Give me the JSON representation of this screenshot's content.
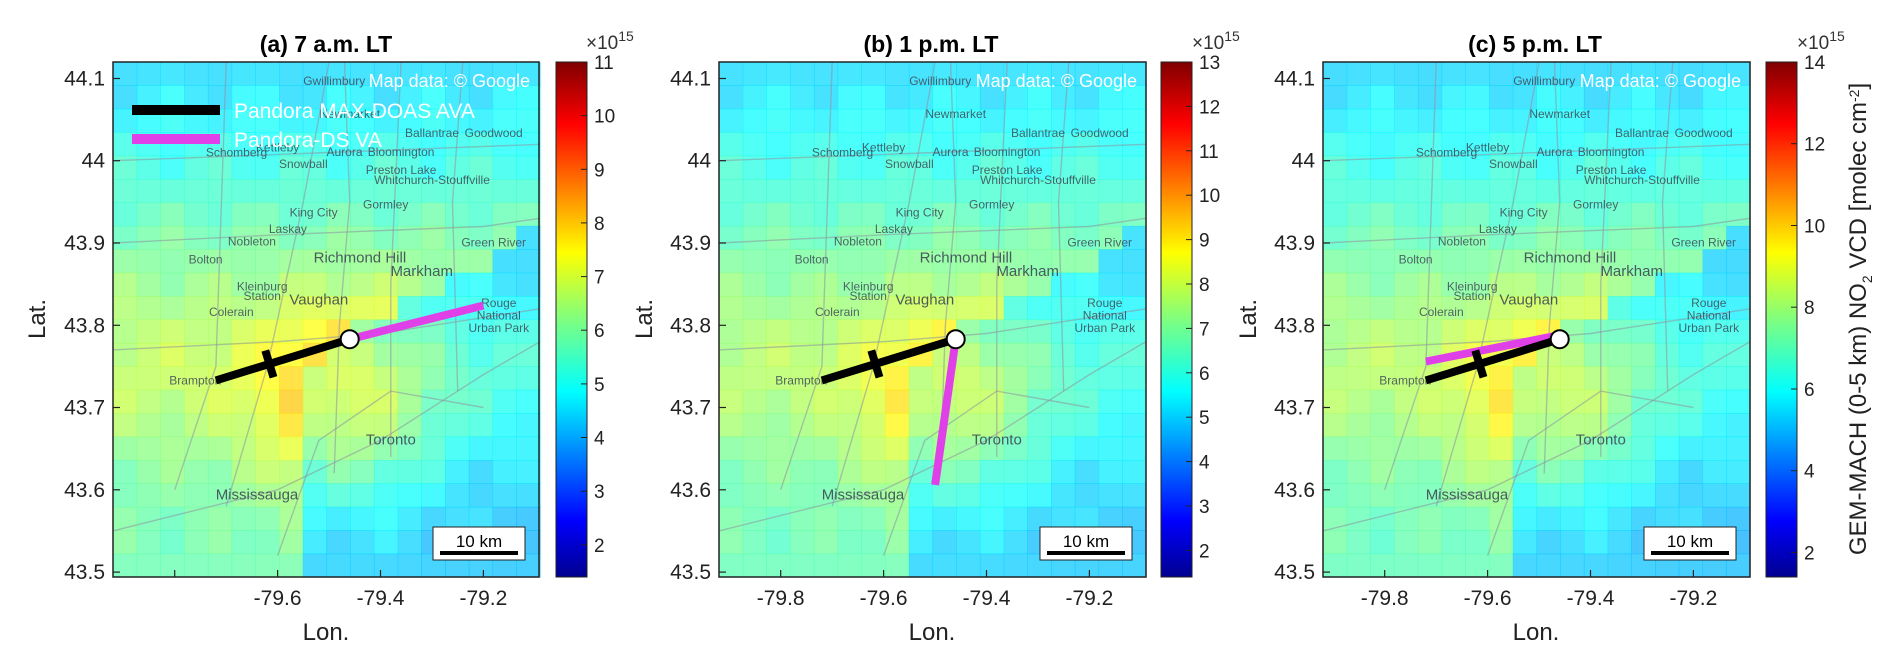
{
  "panels": [
    {
      "title": "(a) 7 a.m. LT",
      "lon_ticks": [
        "",
        "-79.6",
        "-79.4",
        "-79.2"
      ],
      "lat_ticks": [
        "44.1",
        "44",
        "43.9",
        "43.8",
        "43.7",
        "43.6",
        "43.5"
      ],
      "colorbar": {
        "exponent": "×10",
        "exponent_power": "15",
        "ticks": [
          "2",
          "3",
          "4",
          "5",
          "6",
          "7",
          "8",
          "9",
          "10",
          "11"
        ],
        "min": 1.4,
        "max": 11
      },
      "show_legend": true,
      "ds_line": {
        "lon": [
          -79.46,
          -79.2
        ],
        "lat": [
          43.783,
          43.824
        ]
      }
    },
    {
      "title": "(b) 1 p.m. LT",
      "lon_ticks": [
        "-79.8",
        "-79.6",
        "-79.4",
        "-79.2"
      ],
      "lat_ticks": [
        "44.1",
        "44",
        "43.9",
        "43.8",
        "43.7",
        "43.6",
        "43.5"
      ],
      "colorbar": {
        "exponent": "×10",
        "exponent_power": "15",
        "ticks": [
          "2",
          "3",
          "4",
          "5",
          "6",
          "7",
          "8",
          "9",
          "10",
          "11",
          "12",
          "13"
        ],
        "min": 1.4,
        "max": 13
      },
      "show_legend": false,
      "ds_line": {
        "lon": [
          -79.46,
          -79.5
        ],
        "lat": [
          43.783,
          43.606
        ]
      }
    },
    {
      "title": "(c) 5 p.m. LT",
      "lon_ticks": [
        "-79.8",
        "-79.6",
        "-79.4",
        "-79.2"
      ],
      "lat_ticks": [
        "44.1",
        "44",
        "43.9",
        "43.8",
        "43.7",
        "43.6",
        "43.5"
      ],
      "colorbar": {
        "exponent": "×10",
        "exponent_power": "15",
        "ticks": [
          "2",
          "4",
          "6",
          "8",
          "10",
          "12",
          "14"
        ],
        "min": 1.4,
        "max": 14
      },
      "show_legend": false,
      "ds_line": {
        "lon": [
          -79.46,
          -79.72
        ],
        "lat": [
          43.788,
          43.756
        ]
      }
    }
  ],
  "common": {
    "xlabel": "Lon.",
    "ylabel": "Lat.",
    "colorbar_label": "GEM-MACH (0-5 km) NO",
    "colorbar_label_sub": "2",
    "colorbar_label_mid": " VCD [molec cm",
    "colorbar_label_sup": "-2",
    "colorbar_label_end": "]",
    "attribution": "Map data: © Google",
    "scale_bar": "10 km",
    "ava_line": {
      "lon": [
        -79.46,
        -79.72
      ],
      "lat": [
        43.783,
        43.733
      ]
    }
  },
  "legend": {
    "items": [
      {
        "label": "Pandora MAX-DOAS AVA",
        "color": "#000000"
      },
      {
        "label": "Pandora-DS VA",
        "color": "#e040e8"
      }
    ]
  },
  "places": [
    {
      "name": "Gwillimbury",
      "lon": -79.49,
      "lat": 44.092,
      "big": false
    },
    {
      "name": "Newmarket",
      "lon": -79.46,
      "lat": 44.052,
      "big": false
    },
    {
      "name": "Ballantrae",
      "lon": -79.3,
      "lat": 44.029,
      "big": false
    },
    {
      "name": "Goodwood",
      "lon": -79.18,
      "lat": 44.029,
      "big": false
    },
    {
      "name": "Schomberg",
      "lon": -79.68,
      "lat": 44.005,
      "big": false
    },
    {
      "name": "Kettleby",
      "lon": -79.6,
      "lat": 44.011,
      "big": false
    },
    {
      "name": "Aurora",
      "lon": -79.47,
      "lat": 44.006,
      "big": false
    },
    {
      "name": "Bloomington",
      "lon": -79.36,
      "lat": 44.006,
      "big": false
    },
    {
      "name": "Snowball",
      "lon": -79.55,
      "lat": 43.991,
      "big": false
    },
    {
      "name": "Preston Lake",
      "lon": -79.36,
      "lat": 43.984,
      "big": false
    },
    {
      "name": "Whitchurch-Stouffville",
      "lon": -79.3,
      "lat": 43.972,
      "big": false
    },
    {
      "name": "King City",
      "lon": -79.53,
      "lat": 43.932,
      "big": false
    },
    {
      "name": "Gormley",
      "lon": -79.39,
      "lat": 43.942,
      "big": false
    },
    {
      "name": "Nobleton",
      "lon": -79.65,
      "lat": 43.897,
      "big": false
    },
    {
      "name": "Laskay",
      "lon": -79.58,
      "lat": 43.912,
      "big": false
    },
    {
      "name": "Bolton",
      "lon": -79.74,
      "lat": 43.875,
      "big": false
    },
    {
      "name": "Green River",
      "lon": -79.18,
      "lat": 43.896,
      "big": false
    },
    {
      "name": "Richmond Hill",
      "lon": -79.44,
      "lat": 43.876,
      "big": true
    },
    {
      "name": "Markham",
      "lon": -79.32,
      "lat": 43.86,
      "big": true
    },
    {
      "name": "Kleinburg",
      "lon": -79.63,
      "lat": 43.842,
      "big": false
    },
    {
      "name": "Station",
      "lon": -79.63,
      "lat": 43.831,
      "big": false
    },
    {
      "name": "Vaughan",
      "lon": -79.52,
      "lat": 43.825,
      "big": true
    },
    {
      "name": "Colerain",
      "lon": -79.69,
      "lat": 43.811,
      "big": false
    },
    {
      "name": "Rouge",
      "lon": -79.17,
      "lat": 43.822,
      "big": false
    },
    {
      "name": "National",
      "lon": -79.17,
      "lat": 43.807,
      "big": false
    },
    {
      "name": "Urban Park",
      "lon": -79.17,
      "lat": 43.792,
      "big": false
    },
    {
      "name": "Brampton",
      "lon": -79.76,
      "lat": 43.728,
      "big": false
    },
    {
      "name": "Toronto",
      "lon": -79.38,
      "lat": 43.655,
      "big": true
    },
    {
      "name": "Mississauga",
      "lon": -79.64,
      "lat": 43.588,
      "big": true
    }
  ]
}
